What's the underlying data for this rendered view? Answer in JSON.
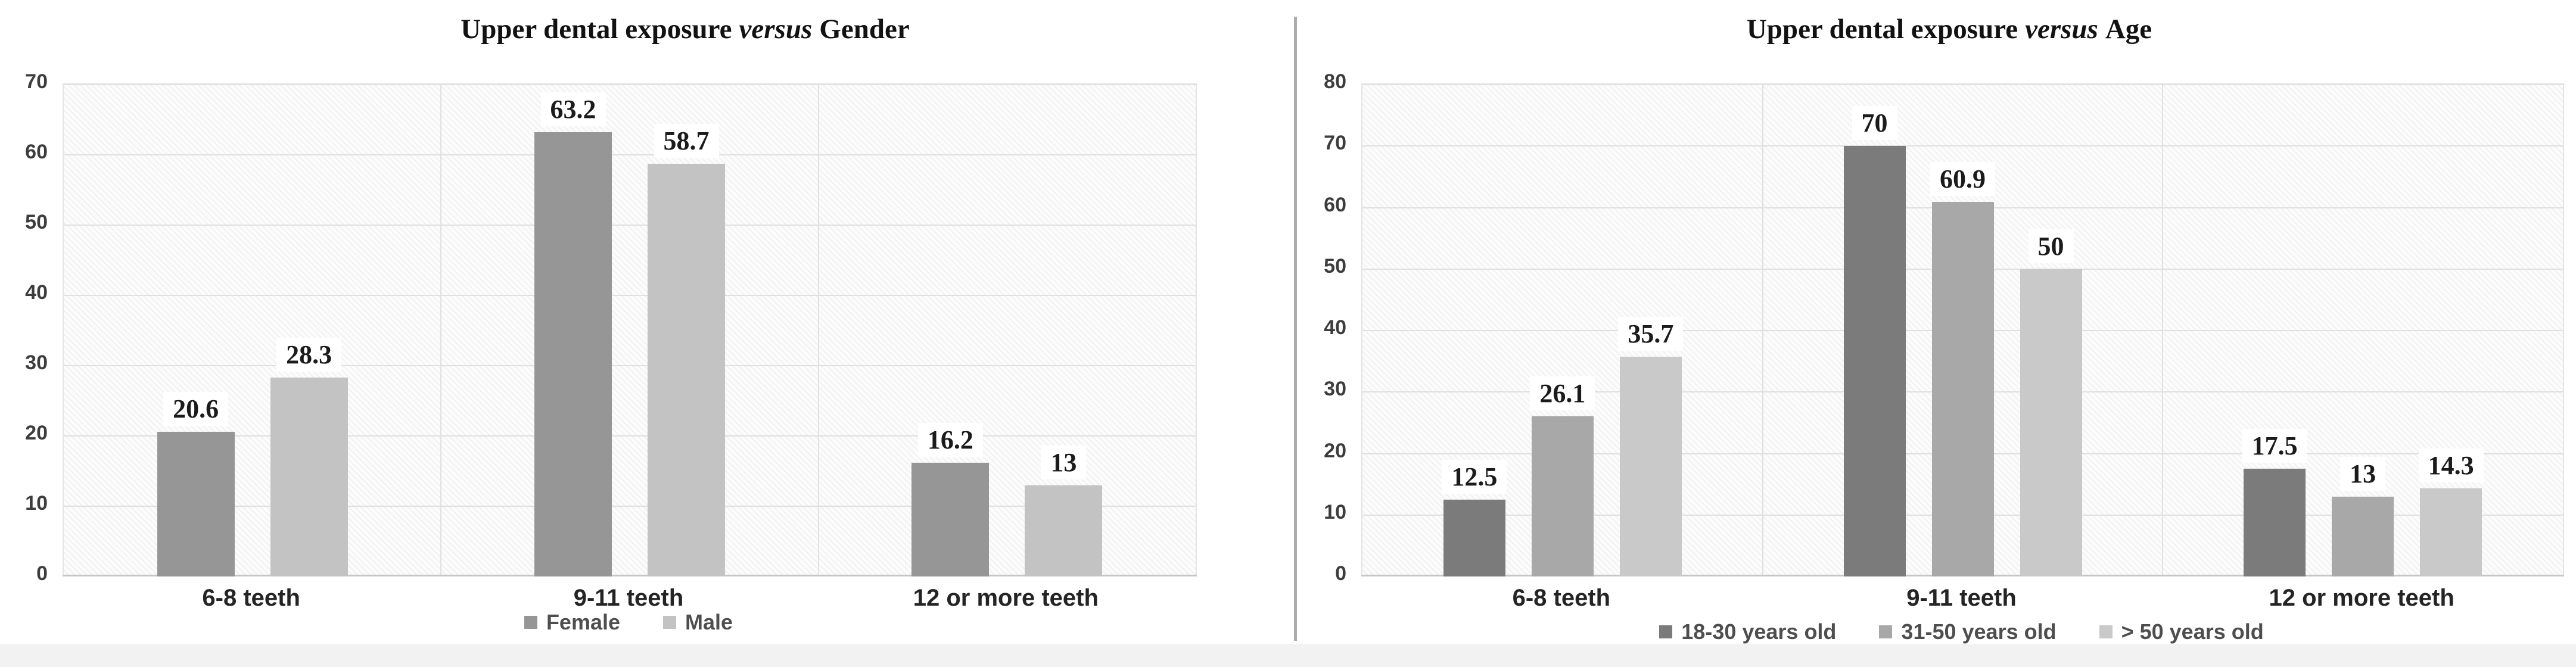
{
  "figure": {
    "description": "Two grouped bar charts comparing upper dental exposure by gender and by age",
    "divider_color": "#ababab",
    "background_color": "#ffffff",
    "plot_background": "diagonal-hatch",
    "gridline_color": "#e0e0e0"
  },
  "chart_data": [
    {
      "type": "bar",
      "title": {
        "prefix": "Upper dental exposure",
        "italic": "versus",
        "suffix": "Gender"
      },
      "categories": [
        "6-8 teeth",
        "9-11 teeth",
        "12 or more teeth"
      ],
      "series": [
        {
          "name": "Female",
          "color": "#969696",
          "values": [
            20.6,
            63.2,
            16.2
          ],
          "labels": [
            "20.6",
            "63.2",
            "16.2"
          ]
        },
        {
          "name": "Male",
          "color": "#c3c3c3",
          "values": [
            28.3,
            58.7,
            13
          ],
          "labels": [
            "28.3",
            "58.7",
            "13"
          ]
        }
      ],
      "ylim": [
        0,
        70
      ],
      "y_ticks": [
        "0",
        "10",
        "20",
        "30",
        "40",
        "50",
        "60",
        "70"
      ],
      "grid": true,
      "legend_position": "bottom",
      "data_labels": true
    },
    {
      "type": "bar",
      "title": {
        "prefix": "Upper dental exposure",
        "italic": "versus",
        "suffix": "Age"
      },
      "categories": [
        "6-8 teeth",
        "9-11 teeth",
        "12 or more teeth"
      ],
      "series": [
        {
          "name": "18-30 years old",
          "color": "#7b7b7b",
          "values": [
            12.5,
            70,
            17.5
          ],
          "labels": [
            "12.5",
            "70",
            "17.5"
          ]
        },
        {
          "name": "31-50 years old",
          "color": "#a8a8a8",
          "values": [
            26.1,
            60.9,
            13
          ],
          "labels": [
            "26.1",
            "60.9",
            "13"
          ]
        },
        {
          "name": "> 50 years old",
          "color": "#c9c9c9",
          "values": [
            35.7,
            50,
            14.3
          ],
          "labels": [
            "35.7",
            "50",
            "14.3"
          ]
        }
      ],
      "ylim": [
        0,
        80
      ],
      "y_ticks": [
        "0",
        "10",
        "20",
        "30",
        "40",
        "50",
        "60",
        "70",
        "80"
      ],
      "grid": true,
      "legend_position": "bottom",
      "data_labels": true
    }
  ]
}
